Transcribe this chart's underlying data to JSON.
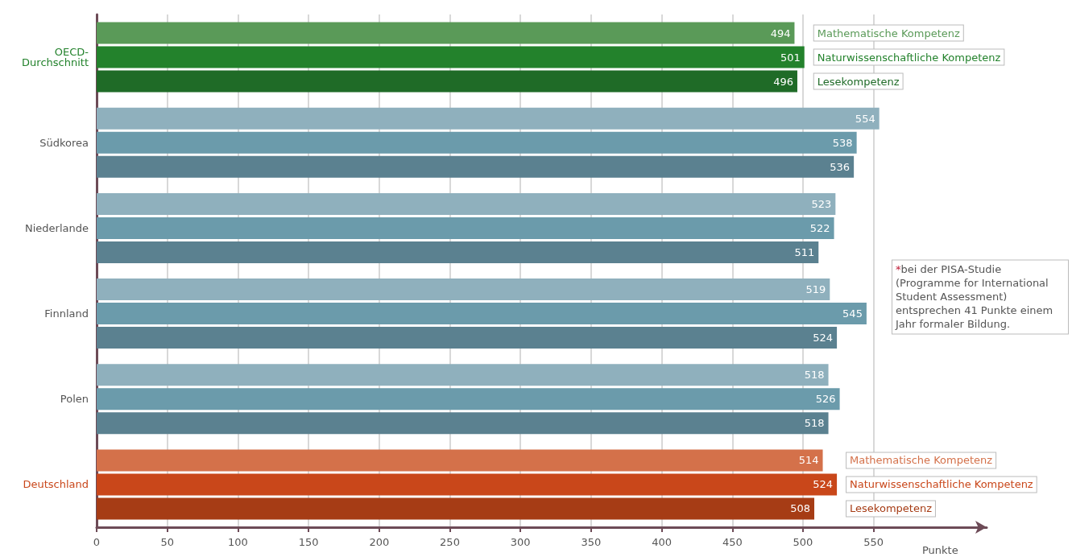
{
  "chart_data": {
    "type": "bar",
    "orientation": "horizontal",
    "xlabel": "Punkte",
    "categories": [
      "OECD-Durchschnitt",
      "Südkorea",
      "Niederlande",
      "Finnland",
      "Polen",
      "Deutschland"
    ],
    "series": [
      {
        "name": "Mathematische Kompetenz",
        "colors": [
          "#5a9a58",
          "#8fb0bd",
          "#8fb0bd",
          "#8fb0bd",
          "#8fb0bd",
          "#d4714a"
        ],
        "values": [
          494,
          554,
          523,
          519,
          518,
          514
        ]
      },
      {
        "name": "Naturwissenschaftliche Kompetenz",
        "colors": [
          "#23822c",
          "#6b9bab",
          "#6b9bab",
          "#6b9bab",
          "#6b9bab",
          "#c9471a"
        ],
        "values": [
          501,
          538,
          522,
          545,
          526,
          524
        ]
      },
      {
        "name": "Lesekompetenz",
        "colors": [
          "#1f6b27",
          "#5b8190",
          "#5b8190",
          "#5b8190",
          "#5b8190",
          "#a63c15"
        ],
        "values": [
          496,
          536,
          511,
          524,
          518,
          508
        ]
      }
    ],
    "xlim": [
      0,
      630
    ],
    "xticks": [
      0,
      50,
      100,
      150,
      200,
      250,
      300,
      350,
      400,
      450,
      500,
      550
    ],
    "grid": "x",
    "legend": false,
    "data_labels": true,
    "annotations": [
      "*bei der PISA-Studie (Programme for International Student Assessment) entsprechen 41 Punkte einem Jahr formaler Bildung."
    ]
  }
}
